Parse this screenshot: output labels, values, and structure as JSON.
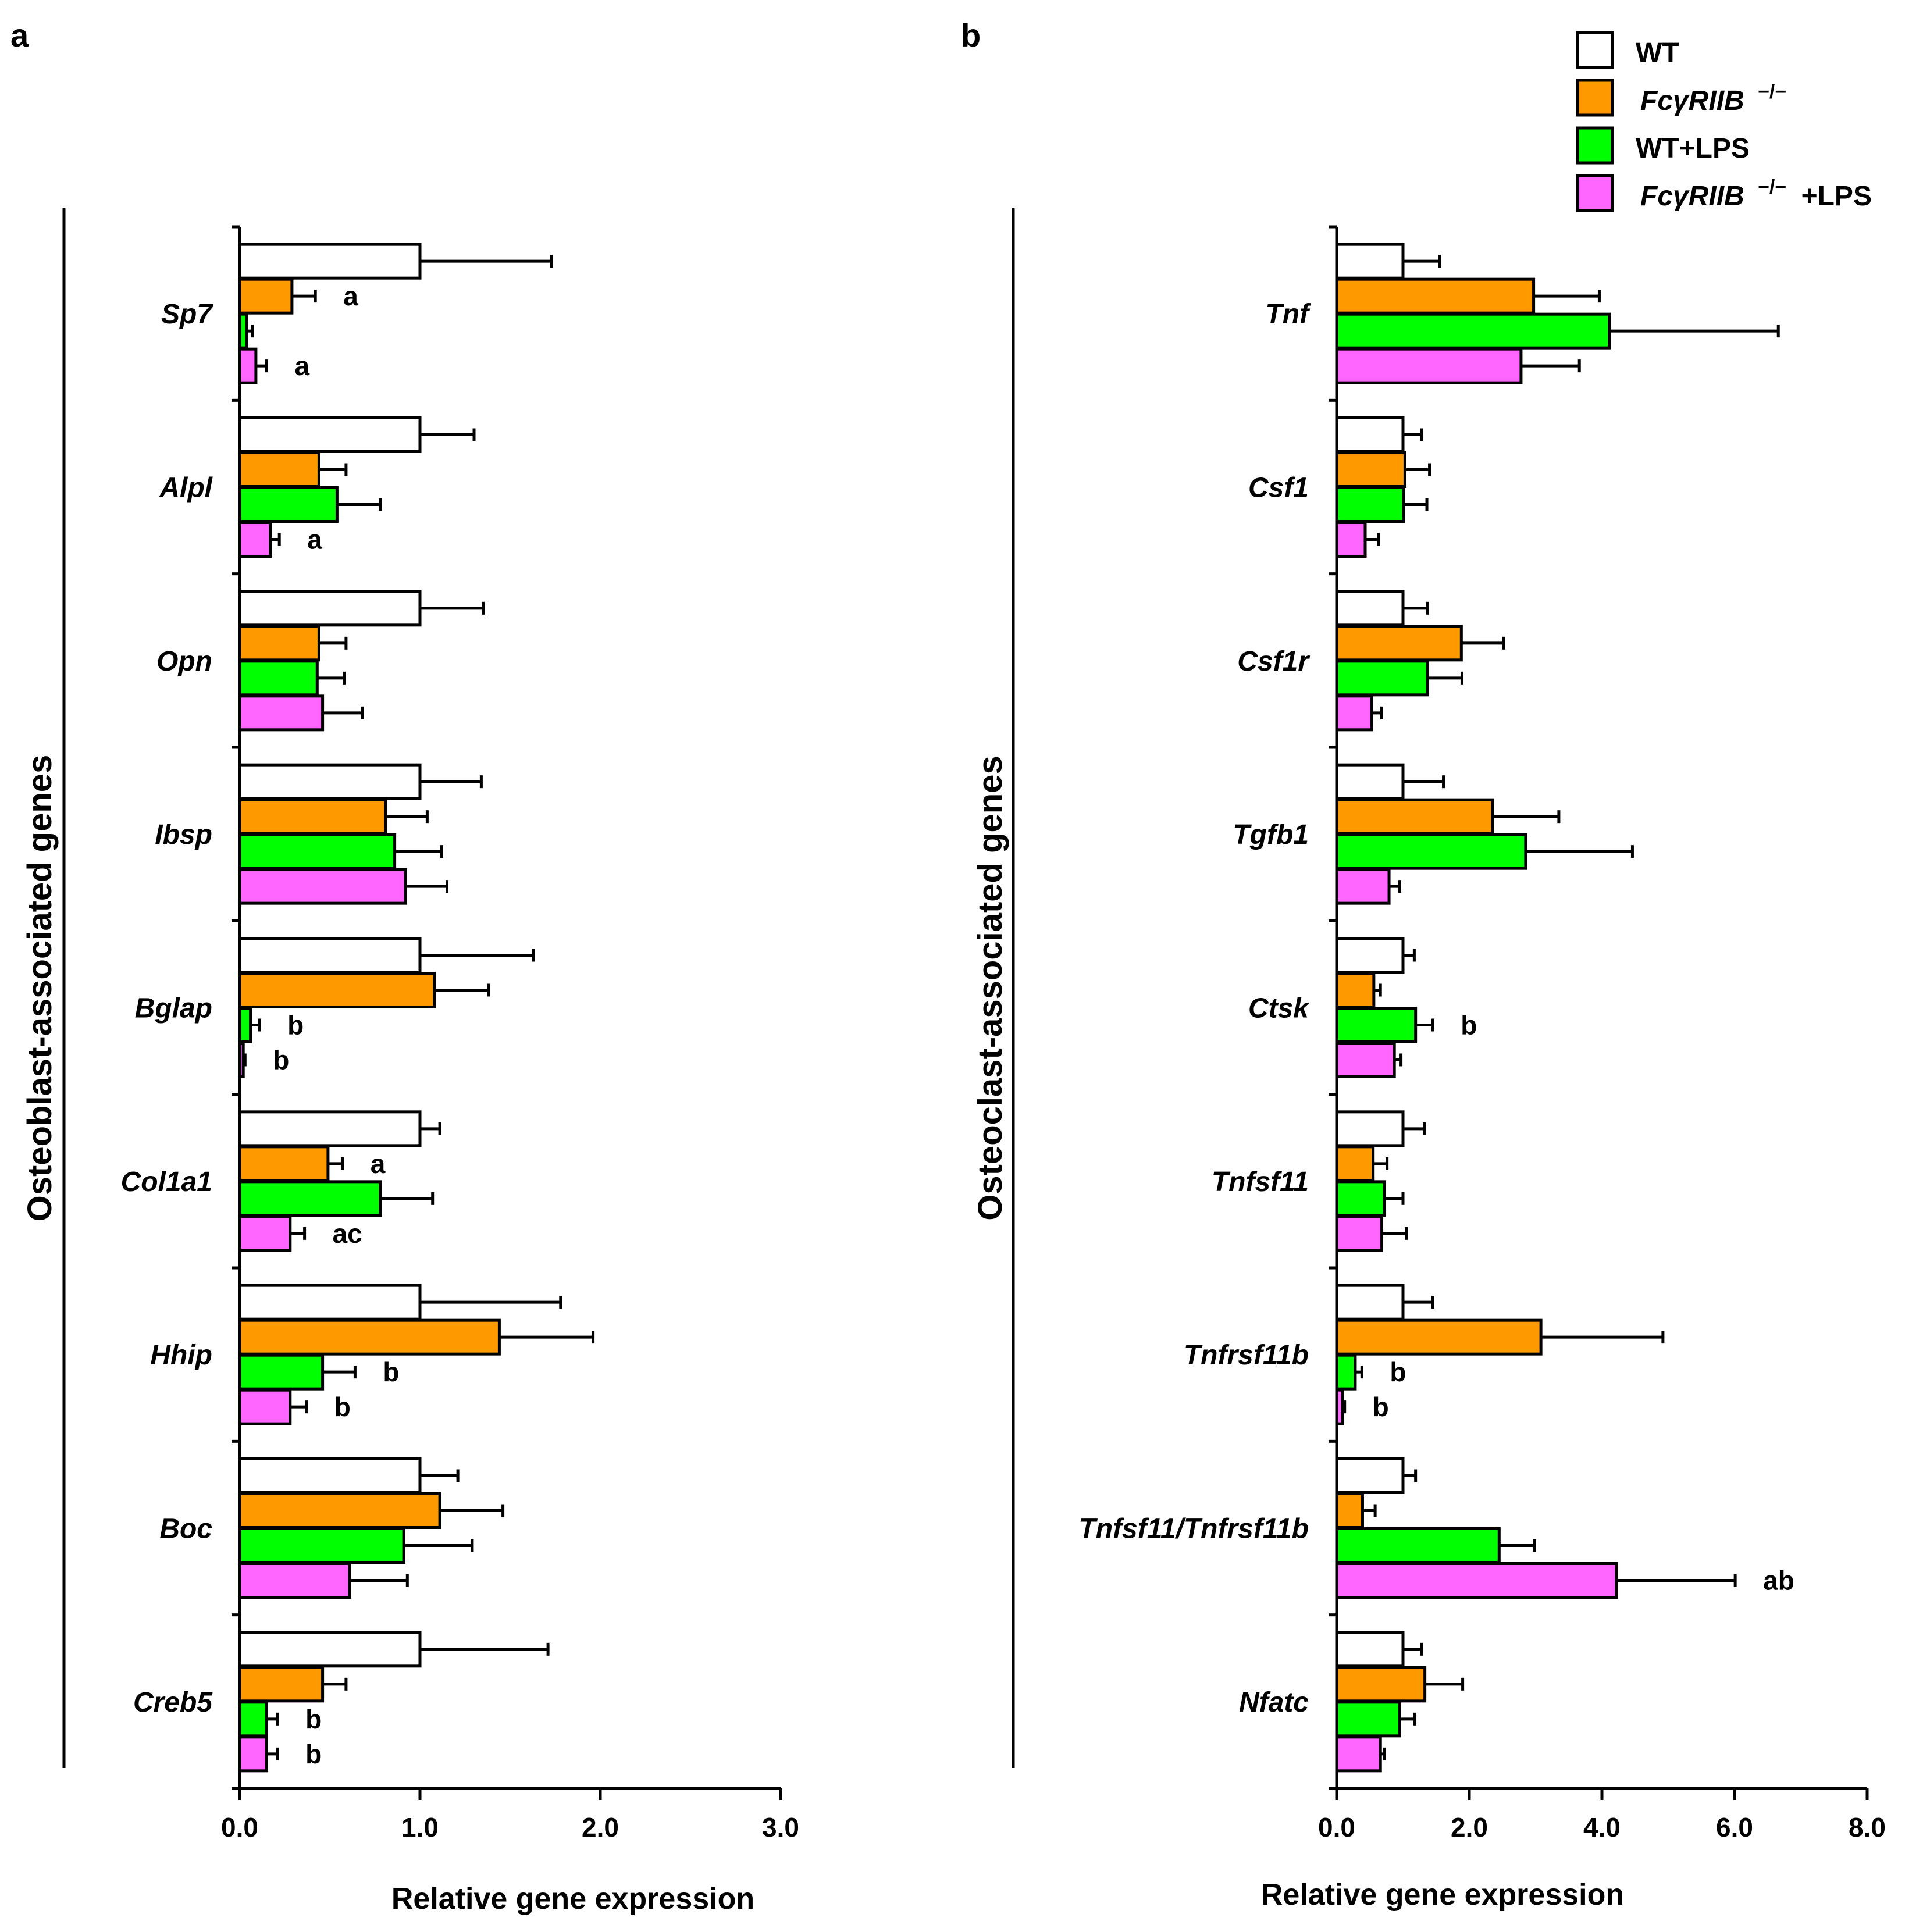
{
  "colors": {
    "WT": "#ffffff",
    "FcgRIIB": "#ff9900",
    "WT_LPS": "#00ff00",
    "FcgRIIB_LPS": "#ff66ff",
    "stroke": "#000000"
  },
  "legend": {
    "wt": "WT",
    "ko_main": "FcγRIIB",
    "ko_sup": "−/−",
    "wt_lps": "WT+LPS",
    "ko_lps_main": "FcγRIIB",
    "ko_lps_sup": "−/−",
    "ko_lps_suffix": "+LPS"
  },
  "chart_data": [
    {
      "panel": "a",
      "type": "bar",
      "orientation": "horizontal",
      "group_label": "Osteoblast-associated genes",
      "xlabel": "Relative gene expression",
      "xlim": [
        0,
        3
      ],
      "xticks": [
        "0.0",
        "1.0",
        "2.0",
        "3.0"
      ],
      "series_names": [
        "WT",
        "FcγRIIB−/−",
        "WT+LPS",
        "FcγRIIB−/−+LPS"
      ],
      "categories": [
        "Sp7",
        "Alpl",
        "Opn",
        "Ibsp",
        "Bglap",
        "Col1a1",
        "Hhip",
        "Boc",
        "Creb5"
      ],
      "values": [
        [
          1.0,
          0.29,
          0.04,
          0.09
        ],
        [
          1.0,
          0.44,
          0.54,
          0.17
        ],
        [
          1.0,
          0.44,
          0.43,
          0.46
        ],
        [
          1.0,
          0.81,
          0.86,
          0.92
        ],
        [
          1.0,
          1.08,
          0.06,
          0.02
        ],
        [
          1.0,
          0.49,
          0.78,
          0.28
        ],
        [
          1.0,
          1.44,
          0.46,
          0.28
        ],
        [
          1.0,
          1.11,
          0.91,
          0.61
        ],
        [
          1.0,
          0.46,
          0.15,
          0.15
        ]
      ],
      "errors": [
        [
          0.73,
          0.13,
          0.03,
          0.06
        ],
        [
          0.3,
          0.15,
          0.24,
          0.05
        ],
        [
          0.35,
          0.15,
          0.15,
          0.22
        ],
        [
          0.34,
          0.23,
          0.26,
          0.23
        ],
        [
          0.63,
          0.3,
          0.05,
          0.01
        ],
        [
          0.11,
          0.08,
          0.29,
          0.08
        ],
        [
          0.78,
          0.52,
          0.18,
          0.09
        ],
        [
          0.21,
          0.35,
          0.38,
          0.32
        ],
        [
          0.71,
          0.13,
          0.06,
          0.06
        ]
      ],
      "annotations": [
        {
          "cat": "Sp7",
          "bar": 1,
          "text": "a"
        },
        {
          "cat": "Sp7",
          "bar": 3,
          "text": "a"
        },
        {
          "cat": "Alpl",
          "bar": 3,
          "text": "a"
        },
        {
          "cat": "Bglap",
          "bar": 2,
          "text": "b"
        },
        {
          "cat": "Bglap",
          "bar": 3,
          "text": "b"
        },
        {
          "cat": "Col1a1",
          "bar": 1,
          "text": "a"
        },
        {
          "cat": "Col1a1",
          "bar": 3,
          "text": "ac"
        },
        {
          "cat": "Hhip",
          "bar": 2,
          "text": "b"
        },
        {
          "cat": "Hhip",
          "bar": 3,
          "text": "b"
        },
        {
          "cat": "Creb5",
          "bar": 2,
          "text": "b"
        },
        {
          "cat": "Creb5",
          "bar": 3,
          "text": "b"
        }
      ]
    },
    {
      "panel": "b",
      "type": "bar",
      "orientation": "horizontal",
      "group_label": "Osteoclast-associated genes",
      "xlabel": "Relative gene expression",
      "xlim": [
        0,
        8
      ],
      "xticks": [
        "0.0",
        "2.0",
        "4.0",
        "6.0",
        "8.0"
      ],
      "series_names": [
        "WT",
        "FcγRIIB−/−",
        "WT+LPS",
        "FcγRIIB−/−+LPS"
      ],
      "categories": [
        "Tnf",
        "Csf1",
        "Csf1r",
        "Tgfb1",
        "Ctsk",
        "Tnfsf11",
        "Tnfrsf11b",
        "Tnfsf11/Tnfrsf11b",
        "Nfatc"
      ],
      "values": [
        [
          1.0,
          2.97,
          4.11,
          2.78
        ],
        [
          1.0,
          1.03,
          1.01,
          0.43
        ],
        [
          1.0,
          1.88,
          1.37,
          0.53
        ],
        [
          1.0,
          2.35,
          2.85,
          0.79
        ],
        [
          1.0,
          0.56,
          1.19,
          0.87
        ],
        [
          1.0,
          0.55,
          0.72,
          0.68
        ],
        [
          1.0,
          3.08,
          0.28,
          0.09
        ],
        [
          1.0,
          0.39,
          2.45,
          4.22
        ],
        [
          1.0,
          1.33,
          0.95,
          0.66
        ]
      ],
      "errors": [
        [
          0.55,
          0.99,
          2.55,
          0.88
        ],
        [
          0.28,
          0.37,
          0.35,
          0.2
        ],
        [
          0.37,
          0.64,
          0.52,
          0.15
        ],
        [
          0.61,
          1.0,
          1.61,
          0.16
        ],
        [
          0.17,
          0.1,
          0.26,
          0.1
        ],
        [
          0.32,
          0.21,
          0.28,
          0.37
        ],
        [
          0.45,
          1.84,
          0.1,
          0.03
        ],
        [
          0.19,
          0.19,
          0.53,
          1.79
        ],
        [
          0.28,
          0.57,
          0.23,
          0.06
        ]
      ],
      "annotations": [
        {
          "cat": "Ctsk",
          "bar": 2,
          "text": "b"
        },
        {
          "cat": "Tnfrsf11b",
          "bar": 2,
          "text": "b"
        },
        {
          "cat": "Tnfrsf11b",
          "bar": 3,
          "text": "b"
        },
        {
          "cat": "Tnfsf11/Tnfrsf11b",
          "bar": 3,
          "text": "ab"
        }
      ]
    }
  ]
}
